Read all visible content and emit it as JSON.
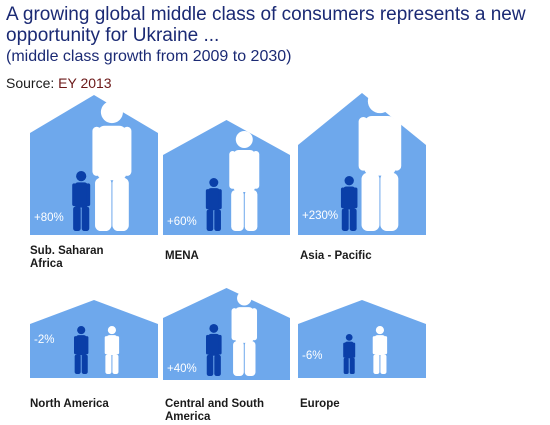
{
  "title": "A growing global middle class of consumers represents a new opportunity for Ukraine ...",
  "subtitle": "(middle class growth from 2009 to 2030)",
  "source_label": "Source:",
  "source_value": "EY 2013",
  "colors": {
    "house": "#6ea8ec",
    "person_dark": "#0a3fa8",
    "person_light": "#ffffff",
    "text_dark": "#1b2a74",
    "source_brown": "#6b1818"
  },
  "chart_data": {
    "type": "pictograph",
    "title": "A growing global middle class of consumers represents a new opportunity for Ukraine ...",
    "subtitle": "(middle class growth from 2009 to 2030)",
    "source": "EY 2013",
    "categories": [
      "Sub. Saharan Africa",
      "MENA",
      "Asia - Pacific",
      "North America",
      "Central and South America",
      "Europe"
    ],
    "values": [
      80,
      60,
      230,
      -2,
      40,
      -6
    ],
    "labels": [
      "+80%",
      "+60%",
      "+230%",
      "-2%",
      "+40%",
      "-6%"
    ],
    "unit": "%"
  }
}
